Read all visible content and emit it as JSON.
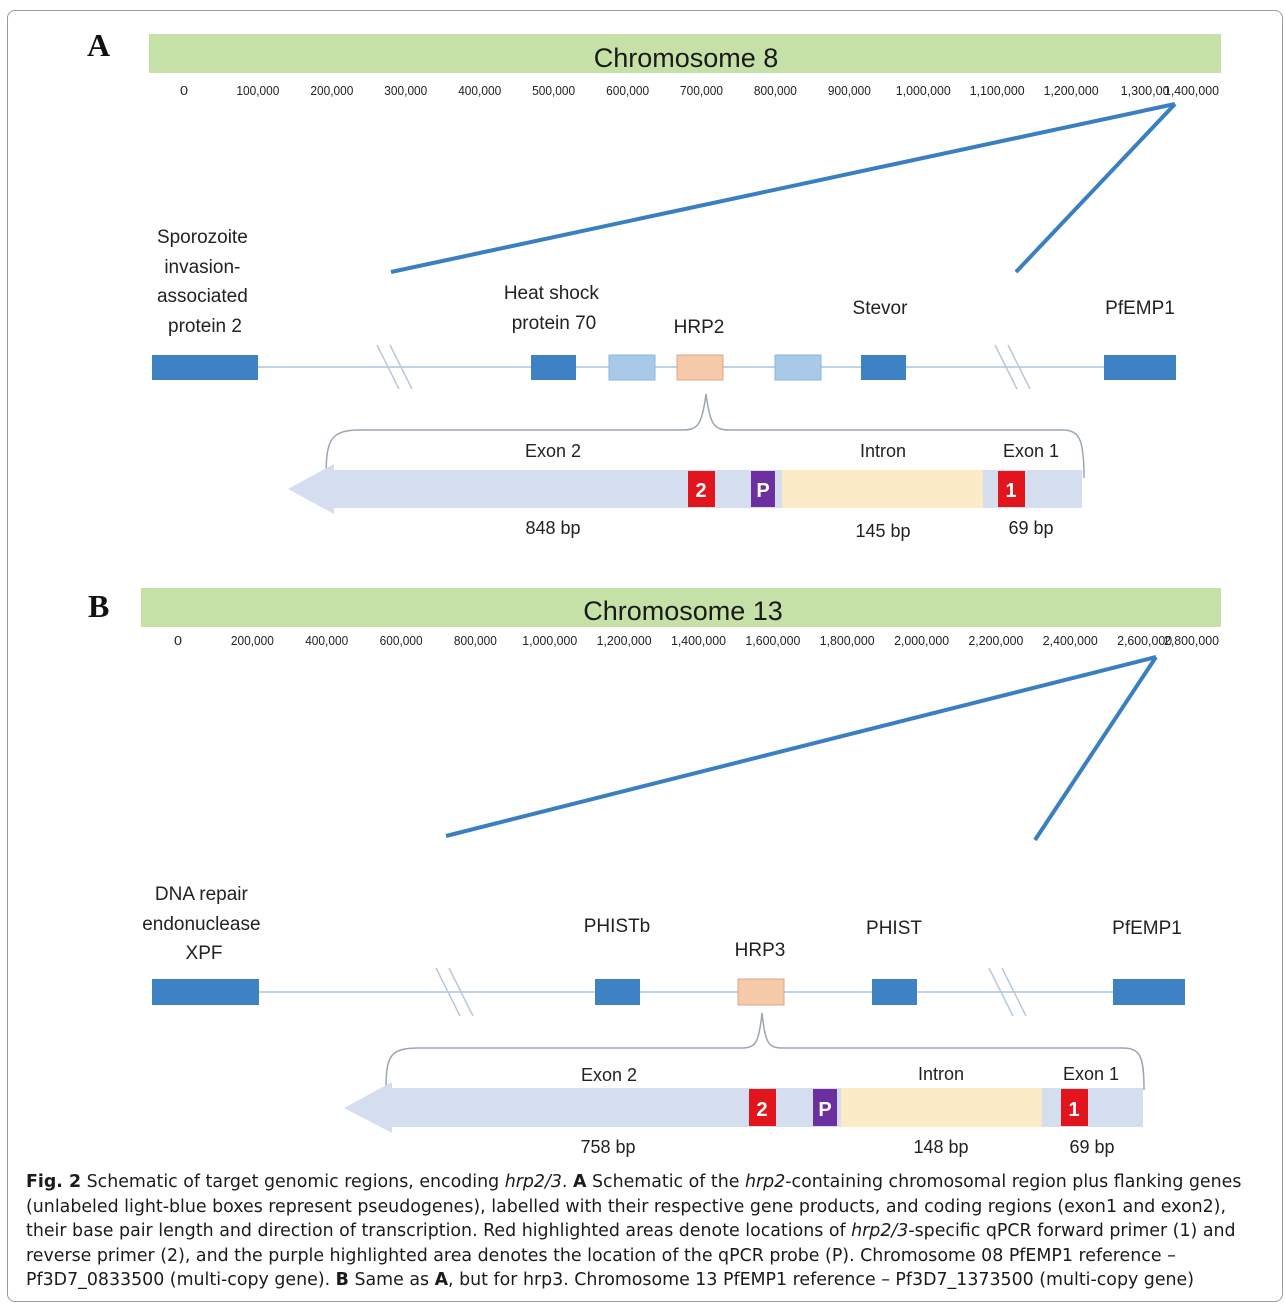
{
  "panels": [
    {
      "letter": "A",
      "chromosome_title": "Chromosome 8",
      "scale_ticks": [
        "0",
        "100,000",
        "200,000",
        "300,000",
        "400,000",
        "500,000",
        "600,000",
        "700,000",
        "800,000",
        "900,000",
        "1,000,000",
        "1,100,000",
        "1,200,000",
        "1,300,00",
        "1,400,000"
      ],
      "genes": {
        "left": [
          "Sporozoite",
          "invasion-",
          "associated",
          "protein 2"
        ],
        "hsp": [
          "Heat shock",
          "protein 70"
        ],
        "target": "HRP2",
        "stevor": "Stevor",
        "right": "PfEMP1"
      },
      "structure": {
        "exon2": "Exon 2",
        "intron": "Intron",
        "exon1": "Exon 1",
        "reverse_primer": "2",
        "probe": "P",
        "forward_primer": "1",
        "exon2_bp": "848 bp",
        "intron_bp": "145 bp",
        "exon1_bp": "69 bp"
      }
    },
    {
      "letter": "B",
      "chromosome_title": "Chromosome 13",
      "scale_ticks": [
        "0",
        "200,000",
        "400,000",
        "600,000",
        "800,000",
        "1,000,000",
        "1,200,000",
        "1,400,000",
        "1,600,000",
        "1,800,000",
        "2,000,000",
        "2,200,000",
        "2,400,000",
        "2,600,000",
        "2,800,000"
      ],
      "genes": {
        "left": [
          "DNA repair",
          "endonuclease",
          "XPF"
        ],
        "phistb": "PHISTb",
        "target": "HRP3",
        "phist": "PHIST",
        "right": "PfEMP1"
      },
      "structure": {
        "exon2": "Exon 2",
        "intron": "Intron",
        "exon1": "Exon 1",
        "reverse_primer": "2",
        "probe": "P",
        "forward_primer": "1",
        "exon2_bp": "758 bp",
        "intron_bp": "148 bp",
        "exon1_bp": "69 bp"
      }
    }
  ],
  "colors": {
    "chromosome_bar": "#c6e1a8",
    "gene": "#3f82c4",
    "pseudogene": "#a9c9e8",
    "target_gene": "#f6c9a8",
    "zoom_line": "#3a7fc1",
    "exon_arrow": "#d4deef",
    "intron": "#fbebc7",
    "primer": "#e2151c",
    "probe": "#6b2fa0"
  },
  "caption": {
    "fig_label": "Fig. 2",
    "t1": "  Schematic of target genomic regions, encoding ",
    "i1": "hrp2/3",
    "t2": ". ",
    "b1": "A",
    "t3": " Schematic of the ",
    "i2": "hrp2",
    "t4": "-containing chromosomal region plus flanking genes (unlabeled light-blue boxes represent pseudogenes), labelled with their respective gene products, and coding regions (exon1 and exon2), their base pair length and direction of transcription. Red highlighted areas denote locations of ",
    "i3": "hrp2/3",
    "t5": "-specific qPCR forward primer (1) and reverse primer (2), and the purple highlighted area denotes the location of the qPCR probe (P). Chromosome 08 PfEMP1 reference – Pf3D7_0833500 (multi-copy gene).  ",
    "b2": "B",
    "t6": " Same as ",
    "b3": "A",
    "t7": ", but for hrp3. Chromosome 13 PfEMP1 reference – Pf3D7_1373500 (multi-copy gene)"
  }
}
